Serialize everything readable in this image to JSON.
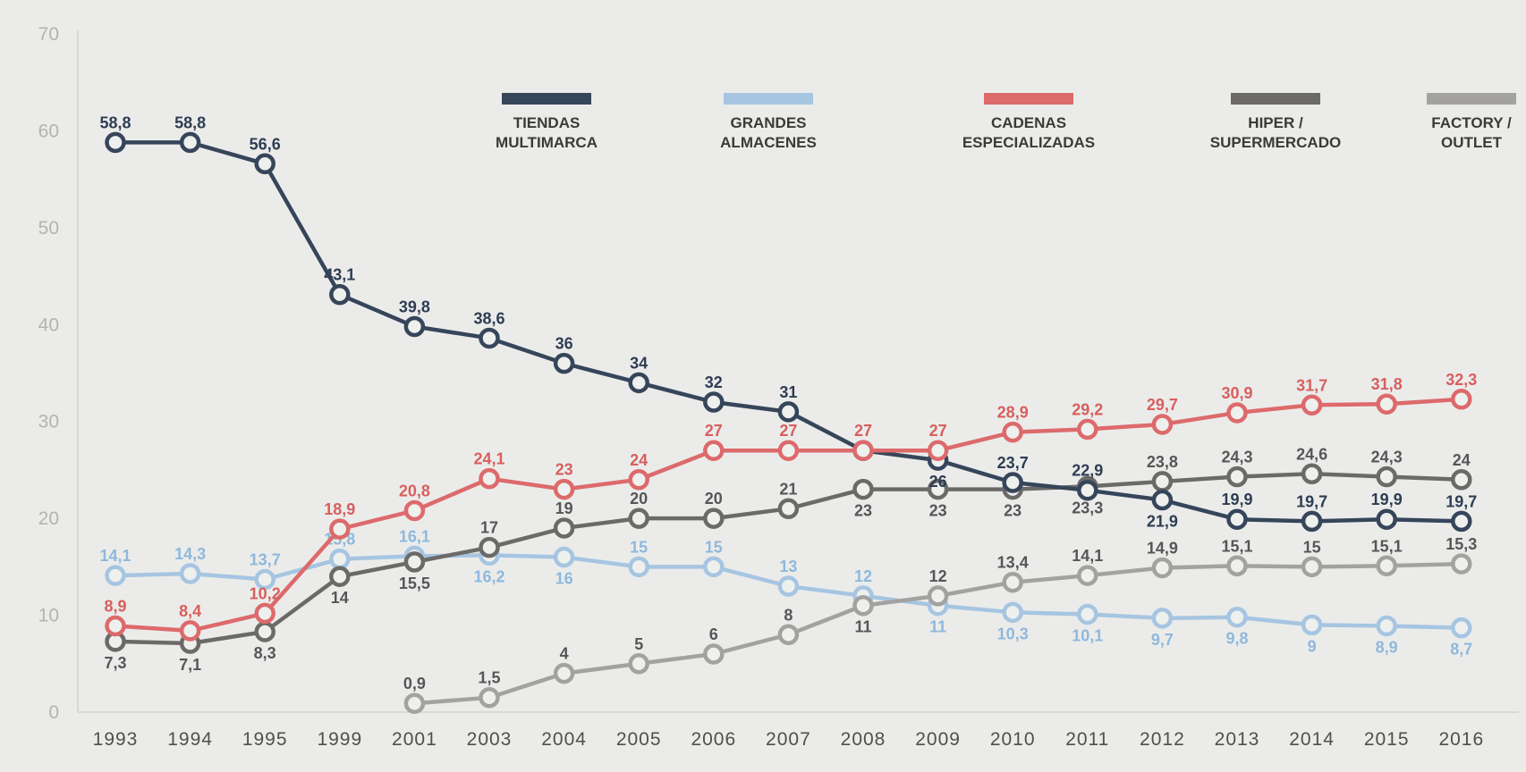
{
  "chart_data": {
    "type": "line",
    "title": "",
    "background": "#ebecea",
    "legend_position": "top",
    "grid": false,
    "x_axis": {
      "labels": [
        "1993",
        "1994",
        "1995",
        "1999",
        "2001",
        "2003",
        "2004",
        "2005",
        "2006",
        "2007",
        "2008",
        "2009",
        "2010",
        "2011",
        "2012",
        "2013",
        "2014",
        "2015",
        "2016"
      ],
      "color": "#4f4f4d"
    },
    "y_axis": {
      "min": 0,
      "max": 70,
      "step": 10,
      "ticks": [
        "0",
        "10",
        "20",
        "30",
        "40",
        "50",
        "60",
        "70"
      ],
      "color": "#b3b3b1"
    },
    "axis_line_color": "#d8d8d6",
    "marker_fill": "#eef0ee",
    "legend_text_color": "#3a3a38",
    "categories": [
      "1993",
      "1994",
      "1995",
      "1999",
      "2001",
      "2003",
      "2004",
      "2005",
      "2006",
      "2007",
      "2008",
      "2009",
      "2010",
      "2011",
      "2012",
      "2013",
      "2014",
      "2015",
      "2016"
    ],
    "series": [
      {
        "name": "TIENDAS MULTIMARCA",
        "slug": "tiendas-multimarca",
        "legend": [
          "TIENDAS",
          "MULTIMARCA"
        ],
        "color": "#36455a",
        "label_color": "#2e3d52",
        "values": [
          58.8,
          58.8,
          56.6,
          43.1,
          39.8,
          38.6,
          36,
          34,
          32,
          31,
          27,
          26,
          23.7,
          22.9,
          21.9,
          19.9,
          19.7,
          19.9,
          19.7
        ],
        "labels": [
          "58,8",
          "58,8",
          "56,6",
          "43,1",
          "39,8",
          "38,6",
          "36",
          "34",
          "32",
          "31",
          null,
          "26",
          "23,7",
          "22,9",
          "21,9",
          "19,9",
          "19,7",
          "19,9",
          "19,7"
        ],
        "label_pos": [
          "a",
          "a",
          "a",
          "a",
          "a",
          "a",
          "a",
          "a",
          "a",
          "a",
          null,
          "b",
          "a",
          "a",
          "b",
          "a",
          "a",
          "a",
          "a"
        ]
      },
      {
        "name": "GRANDES ALMACENES",
        "slug": "grandes-almacenes",
        "legend": [
          "GRANDES",
          "ALMACENES"
        ],
        "color": "#a6c5e1",
        "label_color": "#8fb8dc",
        "values": [
          14.1,
          14.3,
          13.7,
          15.8,
          16.1,
          16.2,
          16,
          15,
          15,
          13,
          12,
          11,
          10.3,
          10.1,
          9.7,
          9.8,
          9,
          8.9,
          8.7
        ],
        "labels": [
          "14,1",
          "14,3",
          "13,7",
          "15,8",
          "16,1",
          "16,2",
          "16",
          "15",
          "15",
          "13",
          "12",
          "11",
          "10,3",
          "10,1",
          "9,7",
          "9,8",
          "9",
          "8,9",
          "8,7"
        ],
        "label_pos": [
          "a",
          "a",
          "a",
          "a",
          "a",
          "b",
          "b",
          "a",
          "a",
          "a",
          "a",
          "b",
          "b",
          "b",
          "b",
          "b",
          "b",
          "b",
          "b"
        ]
      },
      {
        "name": "CADENAS ESPECIALIZADAS",
        "slug": "cadenas-especializadas",
        "legend": [
          "CADENAS",
          "ESPECIALIZADAS"
        ],
        "color": "#dd6a6b",
        "label_color": "#d75f5e",
        "values": [
          8.9,
          8.4,
          10.2,
          18.9,
          20.8,
          24.1,
          23,
          24,
          27,
          27,
          27,
          27,
          28.9,
          29.2,
          29.7,
          30.9,
          31.7,
          31.8,
          32.3
        ],
        "labels": [
          "8,9",
          "8,4",
          "10,2",
          "18,9",
          "20,8",
          "24,1",
          "23",
          "24",
          "27",
          "27",
          "27",
          "27",
          "28,9",
          "29,2",
          "29,7",
          "30,9",
          "31,7",
          "31,8",
          "32,3"
        ],
        "label_pos": [
          "a",
          "a",
          "a",
          "a",
          "a",
          "a",
          "a",
          "a",
          "a",
          "a",
          "a",
          "a",
          "a",
          "a",
          "a",
          "a",
          "a",
          "a",
          "a"
        ]
      },
      {
        "name": "HIPER / SUPERMERCADO",
        "slug": "hiper-supermercado",
        "legend": [
          "HIPER /",
          "SUPERMERCADO"
        ],
        "color": "#6c6a69",
        "label_color": "#565656",
        "values": [
          7.3,
          7.1,
          8.3,
          14,
          15.5,
          17,
          19,
          20,
          20,
          21,
          23,
          23,
          23,
          23.3,
          23.8,
          24.3,
          24.6,
          24.3,
          24
        ],
        "labels": [
          "7,3",
          "7,1",
          "8,3",
          "14",
          "15,5",
          "17",
          "19",
          "20",
          "20",
          "21",
          "23",
          "23",
          "23",
          "23,3",
          "23,8",
          "24,3",
          "24,6",
          "24,3",
          "24"
        ],
        "label_pos": [
          "b",
          "b",
          "b",
          "b",
          "b",
          "a",
          "a",
          "a",
          "a",
          "a",
          "b",
          "b",
          "b",
          "b",
          "a",
          "a",
          "a",
          "a",
          "a"
        ]
      },
      {
        "name": "FACTORY / OUTLET",
        "slug": "factory-outlet",
        "legend": [
          "FACTORY /",
          "OUTLET"
        ],
        "color": "#a3a2a0",
        "label_color": "#565656",
        "values": [
          null,
          null,
          null,
          null,
          0.9,
          1.5,
          4,
          5,
          6,
          8,
          11,
          12,
          13.4,
          14.1,
          14.9,
          15.1,
          15,
          15.1,
          15.3
        ],
        "labels": [
          null,
          null,
          null,
          null,
          "0,9",
          "1,5",
          "4",
          "5",
          "6",
          "8",
          "11",
          "12",
          "13,4",
          "14,1",
          "14,9",
          "15,1",
          "15",
          "15,1",
          "15,3"
        ],
        "label_pos": [
          null,
          null,
          null,
          null,
          "a",
          "a",
          "a",
          "a",
          "a",
          "a",
          "b",
          "a",
          "a",
          "a",
          "a",
          "a",
          "a",
          "a",
          "a"
        ]
      }
    ]
  }
}
